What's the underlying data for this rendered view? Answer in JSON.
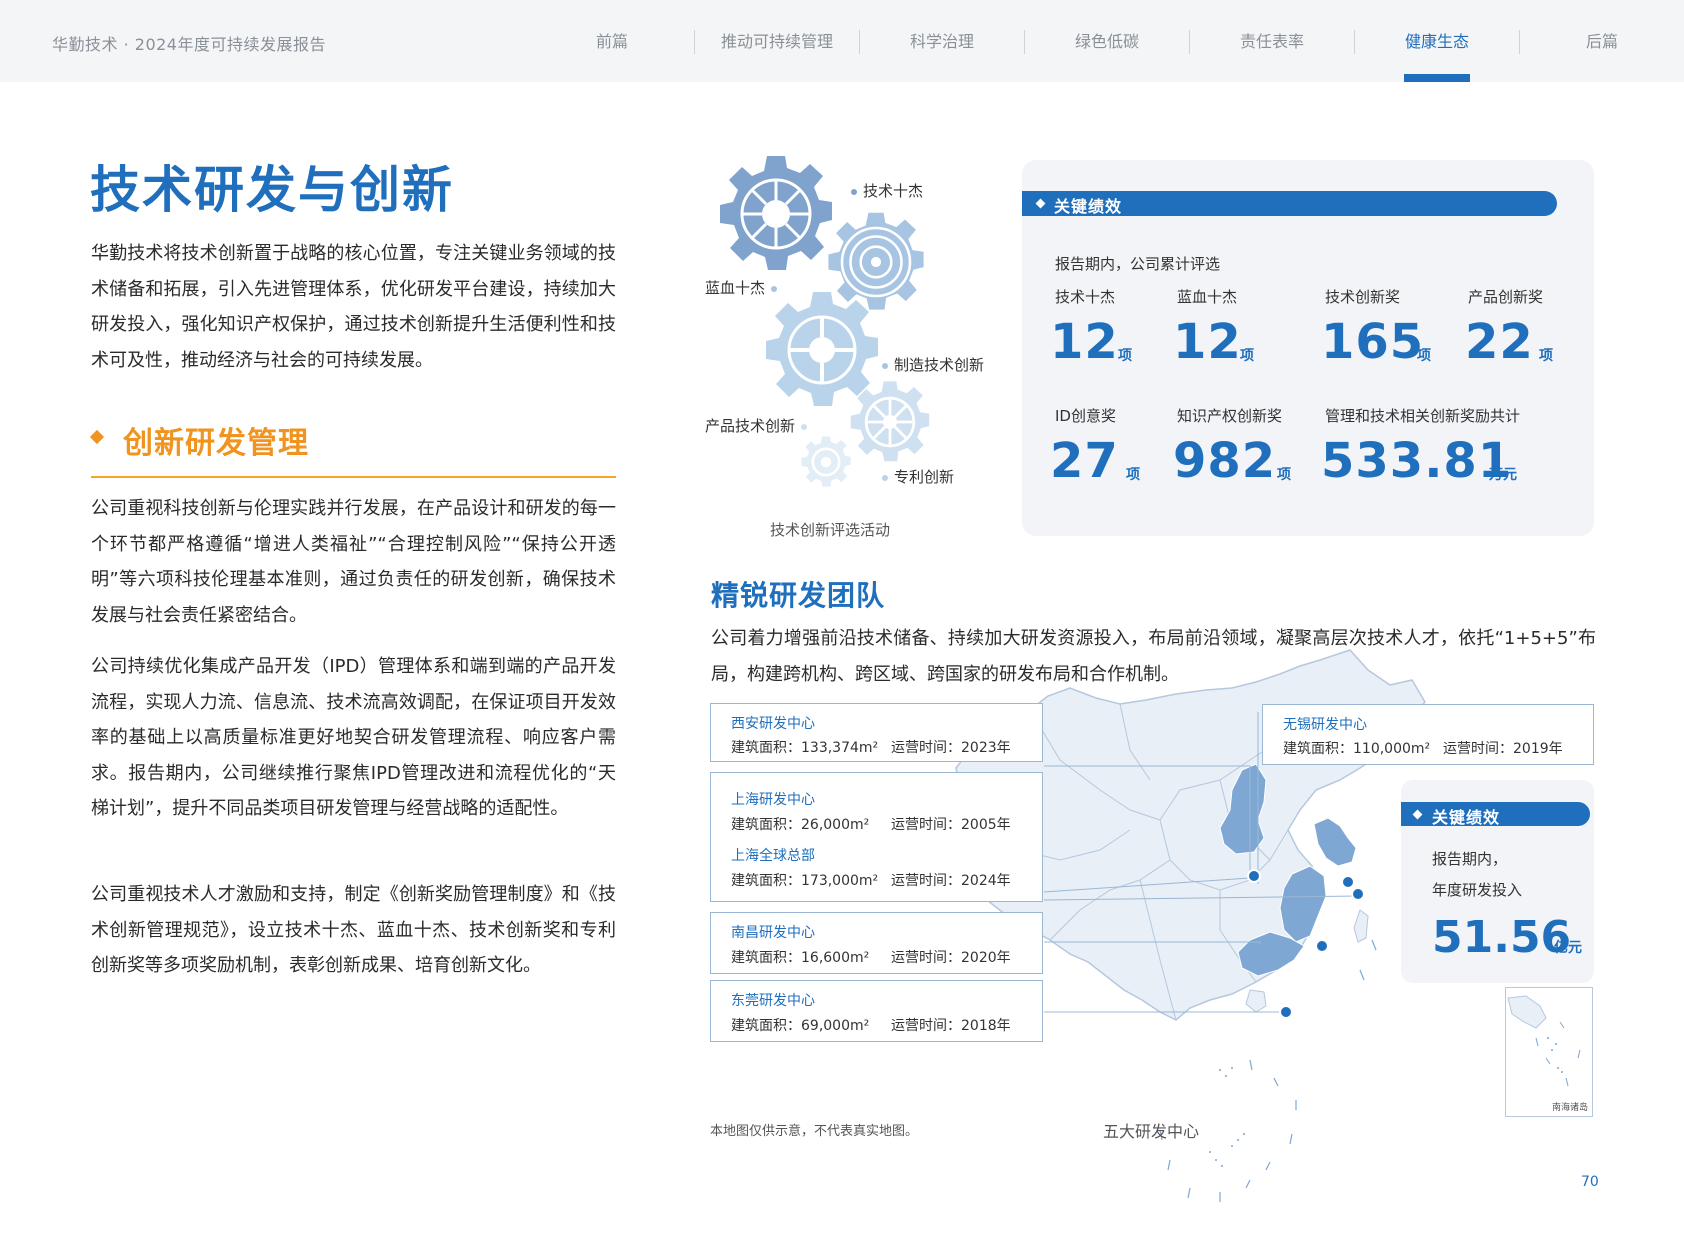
{
  "header": {
    "doc_title": "华勤技术 · 2024年度可持续发展报告",
    "nav": [
      "前篇",
      "推动可持续管理",
      "科学治理",
      "绿色低碳",
      "责任表率",
      "健康生态",
      "后篇"
    ],
    "active_nav": "健康生态"
  },
  "main_title": "技术研发与创新",
  "intro": "华勤技术将技术创新置于战略的核心位置，专注关键业务领域的技术储备和拓展，引入先进管理体系，优化研发平台建设，持续加大研发投入，强化知识产权保护，通过技术创新提升生活便利性和技术可及性，推动经济与社会的可持续发展。",
  "section": {
    "title": "创新研发管理",
    "paragraphs": [
      "公司重视科技创新与伦理实践并行发展，在产品设计和研发的每一个环节都严格遵循“增进人类福祉”“合理控制风险”“保持公开透明”等六项科技伦理基本准则，通过负责任的研发创新，确保技术发展与社会责任紧密结合。",
      "公司持续优化集成产品开发（IPD）管理体系和端到端的产品开发流程，实现人力流、信息流、技术流高效调配，在保证项目开发效率的基础上以高质量标准更好地契合研发管理流程、响应客户需求。报告期内，公司继续推行聚焦IPD管理改进和流程优化的“天梯计划”，提升不同品类项目研发管理与经营战略的适配性。",
      "公司重视技术人才激励和支持，制定《创新奖励管理制度》和《技术创新管理规范》，设立技术十杰、蓝血十杰、技术创新奖和专利创新奖等多项奖励机制，表彰创新成果、培育创新文化。"
    ]
  },
  "gears": {
    "labels": [
      "技术十杰",
      "蓝血十杰",
      "制造技术创新",
      "产品技术创新",
      "专利创新"
    ],
    "caption": "技术创新评选活动",
    "colors": [
      "#7fa3cc",
      "#a7c5e3",
      "#b9d3ea",
      "#cfe0f0",
      "#e3edf6"
    ]
  },
  "kpi": {
    "header": "关键绩效",
    "intro": "报告期内，公司累计评选",
    "items": [
      {
        "label": "技术十杰",
        "value": "12",
        "unit": "项"
      },
      {
        "label": "蓝血十杰",
        "value": "12",
        "unit": "项"
      },
      {
        "label": "技术创新奖",
        "value": "165",
        "unit": "项"
      },
      {
        "label": "产品创新奖",
        "value": "22",
        "unit": "项"
      },
      {
        "label": "ID创意奖",
        "value": "27",
        "unit": "项"
      },
      {
        "label": "知识产权创新奖",
        "value": "982",
        "unit": "项"
      },
      {
        "label": "管理和技术相关创新奖励共计",
        "value": "533.81",
        "unit": "万元"
      }
    ]
  },
  "team": {
    "title": "精锐研发团队",
    "desc": "公司着力增强前沿技术储备、持续加大研发资源投入，布局前沿领域，凝聚高层次技术人才，依托“1+5+5”布局，构建跨机构、跨区域、跨国家的研发布局和合作机制。"
  },
  "rd_centers": {
    "xian": {
      "name": "西安研发中心",
      "area": "建筑面积：133,374m²",
      "time": "运营时间：2023年"
    },
    "shanghai": {
      "name": "上海研发中心",
      "area": "建筑面积：26,000m²",
      "time": "运营时间：2005年"
    },
    "shanghai_hq": {
      "name": "上海全球总部",
      "area": "建筑面积：173,000m²",
      "time": "运营时间：2024年"
    },
    "nanchang": {
      "name": "南昌研发中心",
      "area": "建筑面积：16,600m²",
      "time": "运营时间：2020年"
    },
    "dongguan": {
      "name": "东莞研发中心",
      "area": "建筑面积：69,000m²",
      "time": "运营时间：2018年"
    },
    "wuxi": {
      "name": "无锡研发中心",
      "area": "建筑面积：110,000m²",
      "time": "运营时间：2019年"
    }
  },
  "kpi2": {
    "header": "关键绩效",
    "line1": "报告期内，",
    "line2": "年度研发投入",
    "value": "51.56",
    "unit": "亿元"
  },
  "map": {
    "inset_label": "南海诸岛",
    "note": "本地图仅供示意，不代表真实地图。",
    "caption": "五大研发中心",
    "colors": {
      "base": "#e8eff7",
      "border": "#b5c8dd",
      "highlight": "#7ea7d3",
      "pin": "#1f6fbd"
    }
  },
  "page_number": "70"
}
